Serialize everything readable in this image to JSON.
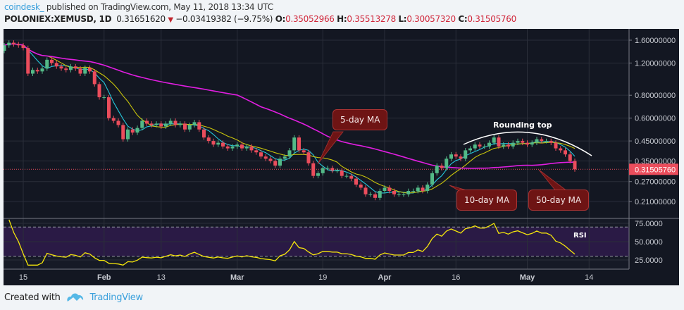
{
  "header": {
    "author": "coindesk_",
    "published": "published on TradingView.com, May 11, 2018 13:34 UTC",
    "symbol": "POLONIEX:XEMUSD, 1D",
    "last": "0.31651620",
    "change": "−0.03419382 (−9.75%)",
    "o_label": "O:",
    "o": "0.35052966",
    "h_label": "H:",
    "h": "0.35513278",
    "l_label": "L:",
    "l": "0.30057320",
    "c_label": "C:",
    "c": "0.31505760"
  },
  "footer": {
    "created_with": "Created with",
    "brand": "TradingView"
  },
  "colors": {
    "background": "#131722",
    "up": "#53b987",
    "down": "#eb4d5c",
    "ma5": "#26c6da",
    "ma10": "#c9c50b",
    "ma50": "#e11ee1",
    "rsi": "#f5e60b",
    "rsi_band": "#2a1a45",
    "last_price": "#eb4d5c"
  },
  "annotations": {
    "ma5": "5-day MA",
    "ma10": "10-day MA",
    "ma50": "50-day MA",
    "rounding_top": "Rounding top",
    "rsi": "RSI"
  },
  "chart_data": {
    "type": "candlestick",
    "scale": "log",
    "start_date": "2018-01-11",
    "end_date": "2018-05-11",
    "ylim": [
      0.19,
      1.7
    ],
    "y_ticks": [
      "1.60000000",
      "1.20000000",
      "0.80000000",
      "0.60000000",
      "0.45000000",
      "0.35000000",
      "0.27000000",
      "0.21000000"
    ],
    "y_tick_values": [
      1.6,
      1.2,
      0.8,
      0.6,
      0.45,
      0.35,
      0.27,
      0.21
    ],
    "last_price_label": "0.31505760",
    "last_price": 0.3150576,
    "x_ticks": [
      {
        "label": "15",
        "date": "2018-01-15"
      },
      {
        "label": "Feb",
        "date": "2018-02-01"
      },
      {
        "label": "13",
        "date": "2018-02-13"
      },
      {
        "label": "Mar",
        "date": "2018-03-01"
      },
      {
        "label": "19",
        "date": "2018-03-19"
      },
      {
        "label": "Apr",
        "date": "2018-04-01"
      },
      {
        "label": "16",
        "date": "2018-04-16"
      },
      {
        "label": "May",
        "date": "2018-05-01"
      },
      {
        "label": "14",
        "date": "2018-05-14"
      }
    ],
    "first_open": 1.4,
    "close": [
      1.5,
      1.55,
      1.52,
      1.5,
      1.45,
      1.05,
      1.1,
      1.08,
      1.12,
      1.25,
      1.2,
      1.15,
      1.12,
      1.1,
      1.15,
      1.12,
      1.05,
      1.13,
      1.08,
      0.92,
      0.78,
      0.78,
      0.6,
      0.58,
      0.55,
      0.46,
      0.52,
      0.5,
      0.53,
      0.58,
      0.56,
      0.55,
      0.56,
      0.54,
      0.56,
      0.58,
      0.55,
      0.56,
      0.52,
      0.55,
      0.57,
      0.52,
      0.47,
      0.45,
      0.43,
      0.44,
      0.42,
      0.41,
      0.42,
      0.43,
      0.41,
      0.42,
      0.4,
      0.39,
      0.37,
      0.36,
      0.35,
      0.33,
      0.36,
      0.37,
      0.4,
      0.47,
      0.4,
      0.39,
      0.34,
      0.29,
      0.3,
      0.32,
      0.32,
      0.31,
      0.31,
      0.29,
      0.29,
      0.28,
      0.26,
      0.25,
      0.23,
      0.23,
      0.22,
      0.24,
      0.25,
      0.24,
      0.23,
      0.23,
      0.23,
      0.24,
      0.24,
      0.25,
      0.24,
      0.26,
      0.3,
      0.33,
      0.32,
      0.36,
      0.38,
      0.37,
      0.36,
      0.4,
      0.41,
      0.43,
      0.42,
      0.42,
      0.44,
      0.47,
      0.42,
      0.43,
      0.42,
      0.44,
      0.45,
      0.44,
      0.43,
      0.44,
      0.46,
      0.45,
      0.45,
      0.44,
      0.41,
      0.4,
      0.38,
      0.35,
      0.315
    ],
    "moving_averages": [
      5,
      10,
      50
    ],
    "rsi": {
      "period": 14,
      "ticks": [
        "75.0000",
        "50.0000",
        "25.0000"
      ],
      "tick_values": [
        75,
        50,
        25
      ],
      "bands": [
        30,
        70
      ],
      "ylim": [
        18,
        80
      ]
    }
  }
}
